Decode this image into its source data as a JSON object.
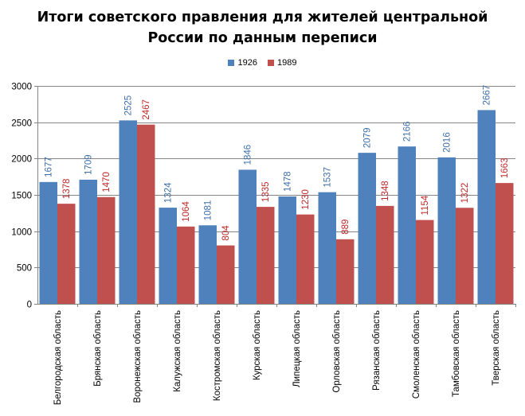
{
  "chart_data": {
    "type": "bar",
    "title_lines": [
      "Итоги советского правления для жителей центральной",
      "России по данным переписи"
    ],
    "categories": [
      "Белгородская область",
      "Брянская область",
      "Воронежская область",
      "Калужская область",
      "Костромская область",
      "Курская область",
      "Липецкая область",
      "Орловская область",
      "Рязанская область",
      "Смоленская область",
      "Тамбовская область",
      "Тверская область"
    ],
    "series": [
      {
        "name": "1926",
        "color": "#4F81BD",
        "label_color": "#3F6FA8",
        "values": [
          1677,
          1709,
          2525,
          1324,
          1081,
          1846,
          1478,
          1537,
          2079,
          2166,
          2016,
          2667
        ]
      },
      {
        "name": "1989",
        "color": "#C0504D",
        "label_color": "#C0282A",
        "values": [
          1378,
          1470,
          2467,
          1064,
          804,
          1335,
          1230,
          889,
          1348,
          1154,
          1322,
          1663
        ]
      }
    ],
    "ylim": [
      0,
      3000
    ],
    "yticks": [
      "0",
      "500",
      "1000",
      "1500",
      "2000",
      "2500",
      "3000"
    ],
    "ytick_values": [
      0,
      500,
      1000,
      1500,
      2000,
      2500,
      3000
    ],
    "grid": true,
    "legend_position": "top-center",
    "xlabel": "",
    "ylabel": ""
  }
}
